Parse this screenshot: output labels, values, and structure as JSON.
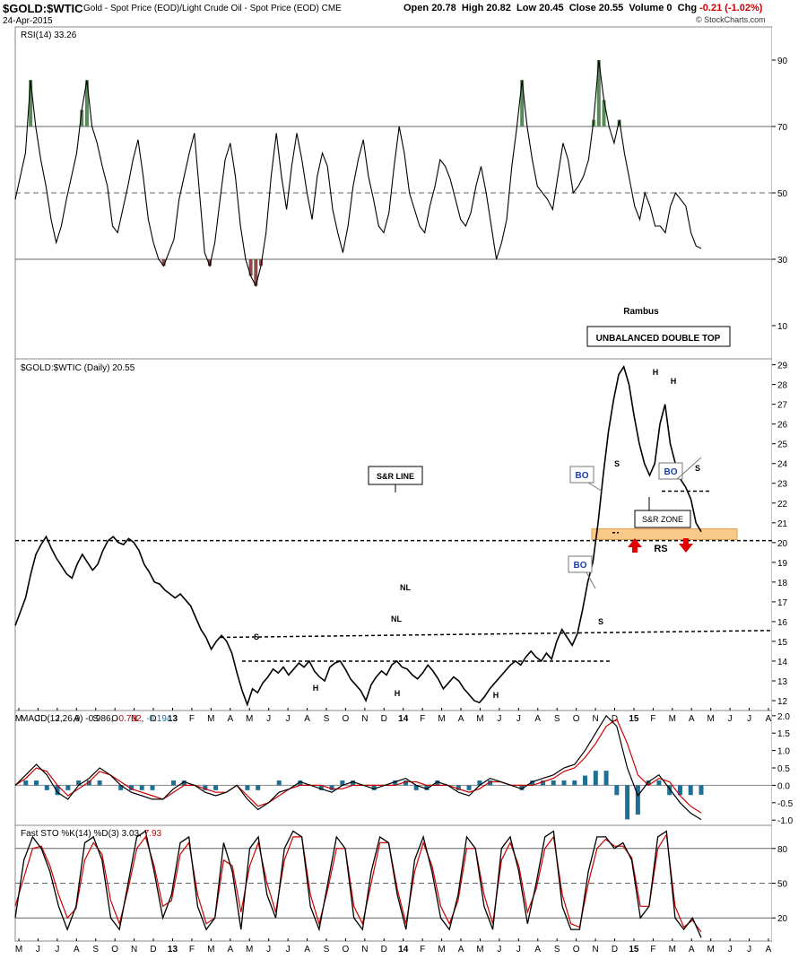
{
  "header": {
    "symbol": "$GOLD:$WTIC",
    "description": "Gold - Spot Price (EOD)/Light Crude Oil - Spot Price (EOD)  CME",
    "date": "24-Apr-2015",
    "open_label": "Open",
    "open": "20.78",
    "high_label": "High",
    "high": "20.82",
    "low_label": "Low",
    "low": "20.45",
    "close_label": "Close",
    "close": "20.55",
    "volume_label": "Volume",
    "volume": "0",
    "chg_label": "Chg",
    "chg": "-0.21 (-1.02%)",
    "brand": "© StockCharts.com"
  },
  "colors": {
    "price": "#000000",
    "rsi_ob": "#5a8a5a",
    "rsi_os": "#8a4a4a",
    "macd_signal": "#cc0000",
    "macd_hist": "#1f6f94",
    "sto_d": "#cc0000",
    "zone": "#f9c98a",
    "arrow": "#e00000",
    "bo_text": "#1a3fa8"
  },
  "chart_data": [
    {
      "id": "rsi",
      "type": "line",
      "title": "RSI(14) 33.26",
      "ylim": [
        0,
        100
      ],
      "y_ticks": [
        90,
        70,
        50,
        30,
        10
      ],
      "levels": [
        70,
        50,
        30
      ],
      "values": [
        48,
        55,
        62,
        84,
        70,
        60,
        52,
        42,
        35,
        40,
        48,
        55,
        62,
        75,
        84,
        70,
        65,
        58,
        52,
        40,
        38,
        45,
        52,
        60,
        66,
        55,
        42,
        35,
        30,
        28,
        32,
        36,
        48,
        55,
        62,
        68,
        50,
        32,
        28,
        35,
        48,
        60,
        65,
        55,
        40,
        30,
        25,
        22,
        28,
        38,
        55,
        68,
        55,
        45,
        58,
        68,
        60,
        50,
        42,
        55,
        62,
        58,
        45,
        38,
        32,
        40,
        52,
        60,
        66,
        55,
        48,
        40,
        38,
        44,
        58,
        70,
        62,
        50,
        45,
        40,
        38,
        46,
        52,
        60,
        58,
        54,
        48,
        42,
        40,
        44,
        52,
        58,
        50,
        40,
        30,
        35,
        42,
        58,
        70,
        84,
        70,
        60,
        52,
        50,
        48,
        45,
        55,
        65,
        60,
        50,
        52,
        55,
        60,
        72,
        90,
        78,
        70,
        65,
        72,
        62,
        54,
        46,
        42,
        50,
        46,
        40,
        40,
        38,
        46,
        50,
        48,
        46,
        38,
        34,
        33.26
      ],
      "annotations": [
        "Rambus",
        "UNBALANCED DOUBLE TOP"
      ]
    },
    {
      "id": "price",
      "type": "line",
      "title": "$GOLD:$WTIC (Daily) 20.55",
      "ylim": [
        11.5,
        29.3
      ],
      "y_ticks": [
        29,
        28,
        27,
        26,
        25,
        24,
        23,
        22,
        21,
        20,
        19,
        18,
        17,
        16,
        15,
        14,
        13,
        12
      ],
      "x_ticks": [
        "M",
        "J",
        "J",
        "A",
        "S",
        "O",
        "N",
        "D",
        "13",
        "F",
        "M",
        "A",
        "M",
        "J",
        "J",
        "A",
        "S",
        "O",
        "N",
        "D",
        "14",
        "F",
        "M",
        "A",
        "M",
        "J",
        "J",
        "A",
        "S",
        "O",
        "N",
        "D",
        "15",
        "F",
        "M",
        "A",
        "M",
        "J",
        "J",
        "A"
      ],
      "values": [
        15.8,
        16.5,
        17.2,
        18.4,
        19.4,
        19.9,
        20.3,
        19.7,
        19.2,
        18.8,
        18.4,
        18.2,
        18.9,
        19.4,
        19.0,
        18.6,
        18.9,
        19.6,
        20.1,
        20.3,
        20.0,
        19.9,
        20.2,
        20.0,
        19.6,
        18.9,
        18.5,
        18.0,
        17.9,
        17.6,
        17.4,
        17.2,
        17.4,
        17.1,
        16.8,
        16.2,
        15.6,
        15.2,
        14.6,
        15.0,
        15.3,
        15.0,
        14.4,
        13.4,
        12.5,
        11.8,
        12.6,
        12.4,
        12.9,
        13.2,
        13.6,
        13.4,
        13.7,
        13.3,
        13.6,
        13.9,
        13.7,
        14.0,
        13.5,
        13.2,
        13.0,
        13.7,
        13.9,
        14.0,
        13.6,
        13.1,
        12.8,
        12.5,
        12.0,
        12.8,
        13.2,
        13.5,
        13.3,
        13.8,
        14.0,
        13.7,
        13.6,
        13.3,
        13.1,
        13.4,
        13.8,
        13.5,
        13.1,
        12.6,
        12.9,
        13.2,
        13.0,
        12.6,
        12.3,
        12.0,
        11.9,
        12.2,
        12.6,
        12.9,
        13.2,
        13.5,
        13.8,
        14.0,
        13.8,
        14.2,
        14.5,
        14.2,
        14.0,
        14.4,
        14.1,
        15.0,
        15.6,
        15.2,
        14.8,
        15.4,
        16.6,
        18.0,
        19.0,
        21.0,
        23.4,
        25.6,
        27.2,
        28.5,
        28.9,
        28.0,
        26.4,
        25.0,
        24.0,
        23.4,
        24.0,
        26.0,
        27.0,
        25.0,
        24.0,
        23.2,
        22.8,
        22.2,
        21.0,
        20.55
      ],
      "annotations": [
        "S&R LINE",
        "S&R ZONE",
        "BO",
        "BO",
        "BO",
        "NL",
        "NL",
        "S",
        "S",
        "S",
        "S",
        "H",
        "H",
        "H",
        "H",
        "H",
        "RS"
      ]
    },
    {
      "id": "macd",
      "type": "line",
      "title": "MACD(12,26,9)",
      "value_labels": [
        "-0.986",
        "-0.792",
        "-0.194"
      ],
      "ylim": [
        -1.15,
        2.15
      ],
      "y_ticks": [
        2.0,
        1.5,
        1.0,
        0.5,
        0.0,
        -0.5,
        -1.0
      ],
      "series": [
        {
          "values": [
            0.0,
            0.3,
            0.6,
            0.3,
            -0.2,
            -0.4,
            0.0,
            0.2,
            0.5,
            0.3,
            0.0,
            -0.2,
            -0.3,
            -0.4,
            -0.4,
            -0.1,
            0.1,
            0.0,
            -0.2,
            -0.3,
            -0.2,
            0.0,
            -0.4,
            -0.7,
            -0.5,
            -0.2,
            -0.1,
            0.1,
            0.0,
            -0.1,
            -0.2,
            0.0,
            0.1,
            0.0,
            -0.1,
            0.0,
            0.1,
            0.2,
            0.0,
            -0.1,
            0.1,
            0.0,
            -0.2,
            -0.3,
            0.0,
            0.2,
            0.1,
            0.0,
            -0.1,
            0.1,
            0.2,
            0.3,
            0.5,
            0.6,
            1.0,
            1.5,
            2.0,
            1.7,
            0.5,
            -0.3,
            0.1,
            0.3,
            -0.1,
            -0.5,
            -0.8,
            -0.986
          ]
        },
        {
          "values": [
            0.0,
            0.2,
            0.5,
            0.4,
            0.0,
            -0.3,
            -0.1,
            0.1,
            0.4,
            0.3,
            0.1,
            -0.1,
            -0.2,
            -0.3,
            -0.4,
            -0.2,
            0.0,
            0.0,
            -0.1,
            -0.2,
            -0.2,
            0.0,
            -0.3,
            -0.6,
            -0.5,
            -0.3,
            -0.1,
            0.0,
            0.0,
            0.0,
            -0.1,
            -0.1,
            0.0,
            0.0,
            0.0,
            0.0,
            0.0,
            0.1,
            0.1,
            0.0,
            0.0,
            0.0,
            -0.1,
            -0.2,
            -0.1,
            0.1,
            0.1,
            0.0,
            0.0,
            0.0,
            0.1,
            0.2,
            0.4,
            0.5,
            0.8,
            1.2,
            1.7,
            1.9,
            1.2,
            0.3,
            0.0,
            0.2,
            0.1,
            -0.3,
            -0.6,
            -0.792
          ]
        }
      ]
    },
    {
      "id": "sto",
      "type": "line",
      "title": "Fast STO %K(14) %D(3)",
      "value_labels": [
        "3.03",
        "7.93"
      ],
      "ylim": [
        0,
        100
      ],
      "y_ticks": [
        80,
        50,
        20
      ],
      "levels": [
        80,
        50,
        20
      ],
      "series": [
        {
          "values": [
            20,
            70,
            90,
            80,
            60,
            30,
            10,
            30,
            85,
            90,
            70,
            20,
            10,
            50,
            90,
            95,
            60,
            20,
            40,
            85,
            90,
            30,
            10,
            20,
            85,
            60,
            10,
            80,
            90,
            40,
            20,
            80,
            95,
            90,
            30,
            10,
            50,
            90,
            80,
            20,
            10,
            60,
            90,
            85,
            40,
            10,
            70,
            90,
            60,
            20,
            10,
            40,
            90,
            80,
            30,
            10,
            80,
            90,
            60,
            15,
            50,
            90,
            95,
            30,
            10,
            10,
            60,
            90,
            90,
            80,
            85,
            70,
            20,
            30,
            90,
            95,
            20,
            10,
            20,
            3.03
          ]
        },
        {
          "values": [
            30,
            55,
            80,
            82,
            65,
            40,
            20,
            28,
            70,
            85,
            75,
            35,
            15,
            45,
            80,
            90,
            65,
            30,
            35,
            75,
            85,
            40,
            15,
            20,
            70,
            65,
            25,
            65,
            85,
            50,
            25,
            70,
            90,
            90,
            40,
            15,
            45,
            80,
            80,
            30,
            15,
            50,
            85,
            85,
            45,
            15,
            60,
            85,
            65,
            30,
            15,
            35,
            80,
            80,
            40,
            15,
            70,
            85,
            65,
            25,
            45,
            80,
            90,
            40,
            15,
            12,
            50,
            80,
            88,
            82,
            82,
            72,
            30,
            30,
            80,
            92,
            30,
            12,
            18,
            7.93
          ]
        }
      ]
    }
  ]
}
